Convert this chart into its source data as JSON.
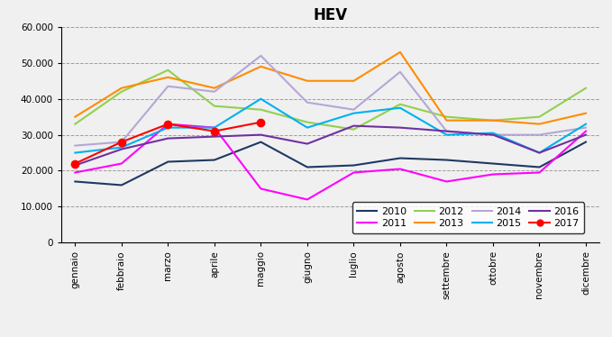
{
  "title": "HEV",
  "months": [
    "gennaio",
    "febbraio",
    "marzo",
    "aprile",
    "maggio",
    "giugno",
    "luglio",
    "agosto",
    "settembre",
    "ottobre",
    "novembre",
    "dicembre"
  ],
  "series": {
    "2010": [
      17000,
      16000,
      22500,
      23000,
      28000,
      21000,
      21500,
      23500,
      23000,
      22000,
      21000,
      28000
    ],
    "2011": [
      19500,
      22000,
      33000,
      32000,
      15000,
      12000,
      19500,
      20500,
      17000,
      19000,
      19500,
      31000
    ],
    "2012": [
      33000,
      42000,
      48000,
      38000,
      37000,
      33500,
      31500,
      38500,
      35000,
      34000,
      35000,
      43000
    ],
    "2013": [
      35000,
      43000,
      46000,
      43000,
      49000,
      45000,
      45000,
      53000,
      34000,
      34000,
      33000,
      36000
    ],
    "2014": [
      27000,
      28000,
      43500,
      42000,
      52000,
      39000,
      37000,
      47500,
      31000,
      30000,
      30000,
      32000
    ],
    "2015": [
      25000,
      26500,
      32000,
      32000,
      40000,
      32000,
      36000,
      37500,
      30000,
      30500,
      25000,
      33000
    ],
    "2016": [
      21500,
      26000,
      29000,
      29500,
      30000,
      27500,
      32500,
      32000,
      31000,
      30000,
      25000,
      30000
    ],
    "2017": [
      22000,
      28000,
      33000,
      31000,
      33500,
      null,
      null,
      null,
      null,
      null,
      null,
      null
    ]
  },
  "colors": {
    "2010": "#1f3864",
    "2011": "#ff00ff",
    "2012": "#92d050",
    "2013": "#ff8c00",
    "2014": "#b4a7d6",
    "2015": "#00b0f0",
    "2016": "#7030a0",
    "2017": "#ff0000"
  },
  "ylim": [
    0,
    60000
  ],
  "yticks": [
    0,
    10000,
    20000,
    30000,
    40000,
    50000,
    60000
  ],
  "legend_order": [
    "2010",
    "2011",
    "2012",
    "2013",
    "2014",
    "2015",
    "2016",
    "2017"
  ]
}
